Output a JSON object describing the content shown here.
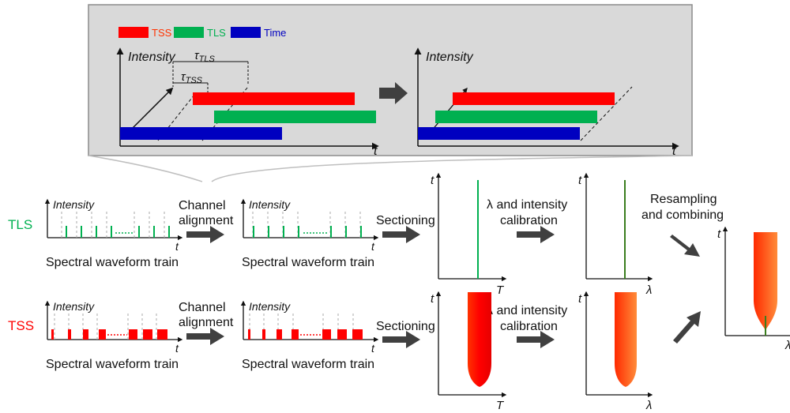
{
  "colors": {
    "tss": "#ff0000",
    "tls": "#00b050",
    "time": "#0000c0",
    "panel_bg": "#d9d9d9",
    "arrow": "#404040"
  },
  "inset": {
    "legend": [
      {
        "key": "tss",
        "label": "TSS"
      },
      {
        "key": "tls",
        "label": "TLS"
      },
      {
        "key": "time",
        "label": "Time"
      }
    ],
    "left_plot": {
      "ylabel": "Intensity",
      "xlabel": "t",
      "tau_tls": "τTLS",
      "tau_tss": "τTSS"
    },
    "right_plot": {
      "ylabel": "Intensity",
      "xlabel": "t"
    }
  },
  "rows": [
    {
      "id": "tls",
      "label": "TLS",
      "label_color": "#00b050"
    },
    {
      "id": "tss",
      "label": "TSS",
      "label_color": "#ff0000"
    }
  ],
  "waveform": {
    "ylabel": "Intensity",
    "xlabel": "t",
    "caption": "Spectral waveform train"
  },
  "steps": {
    "channel_alignment": [
      "Channel",
      "alignment"
    ],
    "sectioning": "Sectioning",
    "calibration": [
      "λ and intensity",
      "calibration"
    ],
    "resampling": [
      "Resampling",
      "and combining"
    ]
  },
  "axes": {
    "t": "t",
    "T": "T",
    "lambda": "λ"
  }
}
